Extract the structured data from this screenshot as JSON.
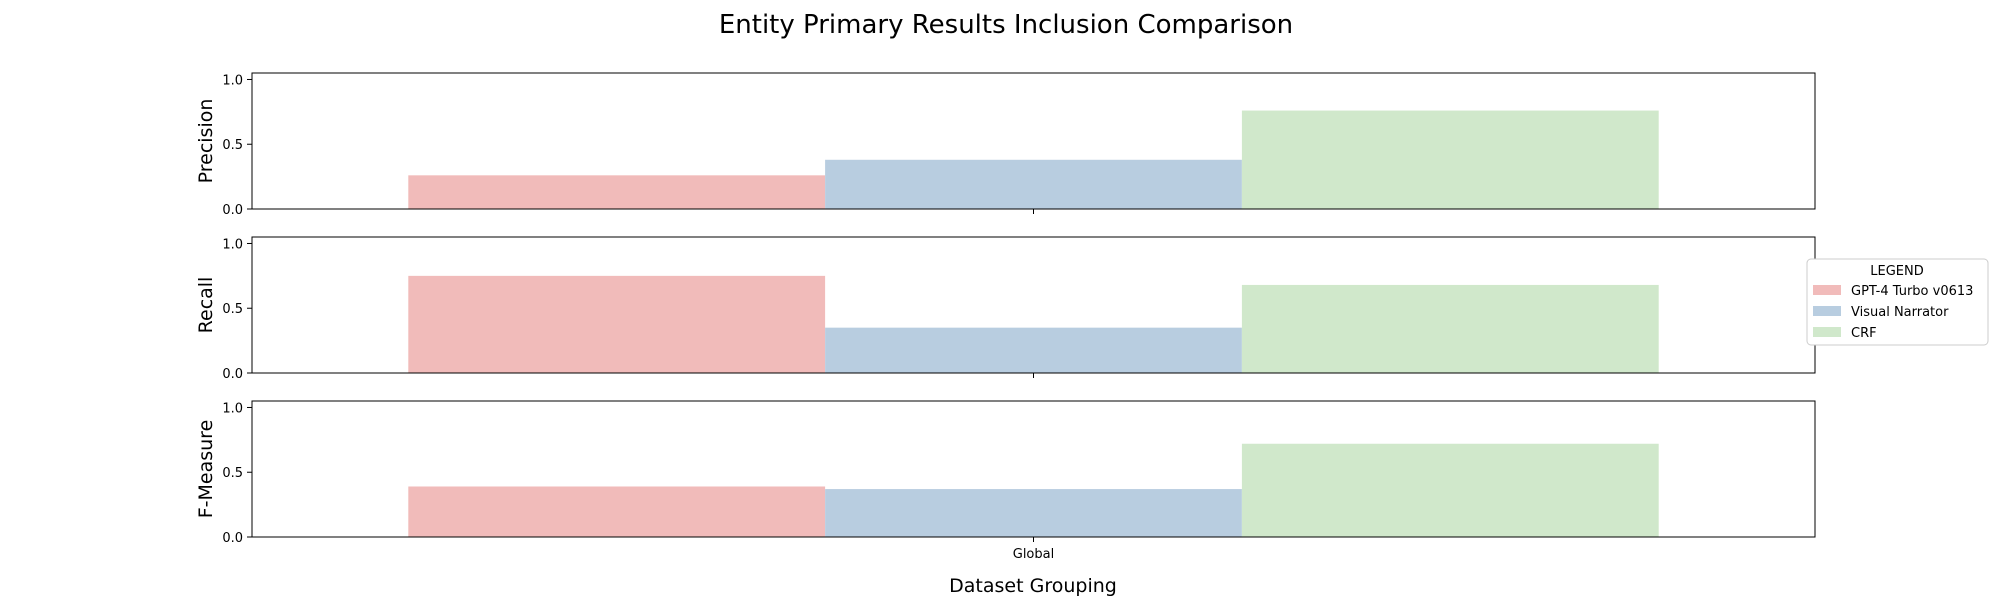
{
  "title": "Entity Primary Results Inclusion Comparison",
  "xlabel": "Dataset Grouping",
  "legend": {
    "title": "LEGEND",
    "placement": "right",
    "entries": [
      {
        "label": "GPT-4 Turbo v0613",
        "color": "#f1bbba"
      },
      {
        "label": "Visual Narrator",
        "color": "#b8cde0"
      },
      {
        "label": "CRF",
        "color": "#d0e8cb"
      }
    ]
  },
  "chart_data": [
    {
      "type": "bar",
      "ylabel": "Precision",
      "categories": [
        "Global"
      ],
      "ylim": [
        0,
        1.05
      ],
      "yticks": [
        "0.0",
        "0.5",
        "1.0"
      ],
      "series": [
        {
          "name": "GPT-4 Turbo v0613",
          "values": [
            0.26
          ]
        },
        {
          "name": "Visual Narrator",
          "values": [
            0.38
          ]
        },
        {
          "name": "CRF",
          "values": [
            0.76
          ]
        }
      ]
    },
    {
      "type": "bar",
      "ylabel": "Recall",
      "categories": [
        "Global"
      ],
      "ylim": [
        0,
        1.05
      ],
      "yticks": [
        "0.0",
        "0.5",
        "1.0"
      ],
      "series": [
        {
          "name": "GPT-4 Turbo v0613",
          "values": [
            0.75
          ]
        },
        {
          "name": "Visual Narrator",
          "values": [
            0.35
          ]
        },
        {
          "name": "CRF",
          "values": [
            0.68
          ]
        }
      ]
    },
    {
      "type": "bar",
      "ylabel": "F-Measure",
      "categories": [
        "Global"
      ],
      "ylim": [
        0,
        1.05
      ],
      "yticks": [
        "0.0",
        "0.5",
        "1.0"
      ],
      "series": [
        {
          "name": "GPT-4 Turbo v0613",
          "values": [
            0.39
          ]
        },
        {
          "name": "Visual Narrator",
          "values": [
            0.37
          ]
        },
        {
          "name": "CRF",
          "values": [
            0.72
          ]
        }
      ]
    }
  ]
}
